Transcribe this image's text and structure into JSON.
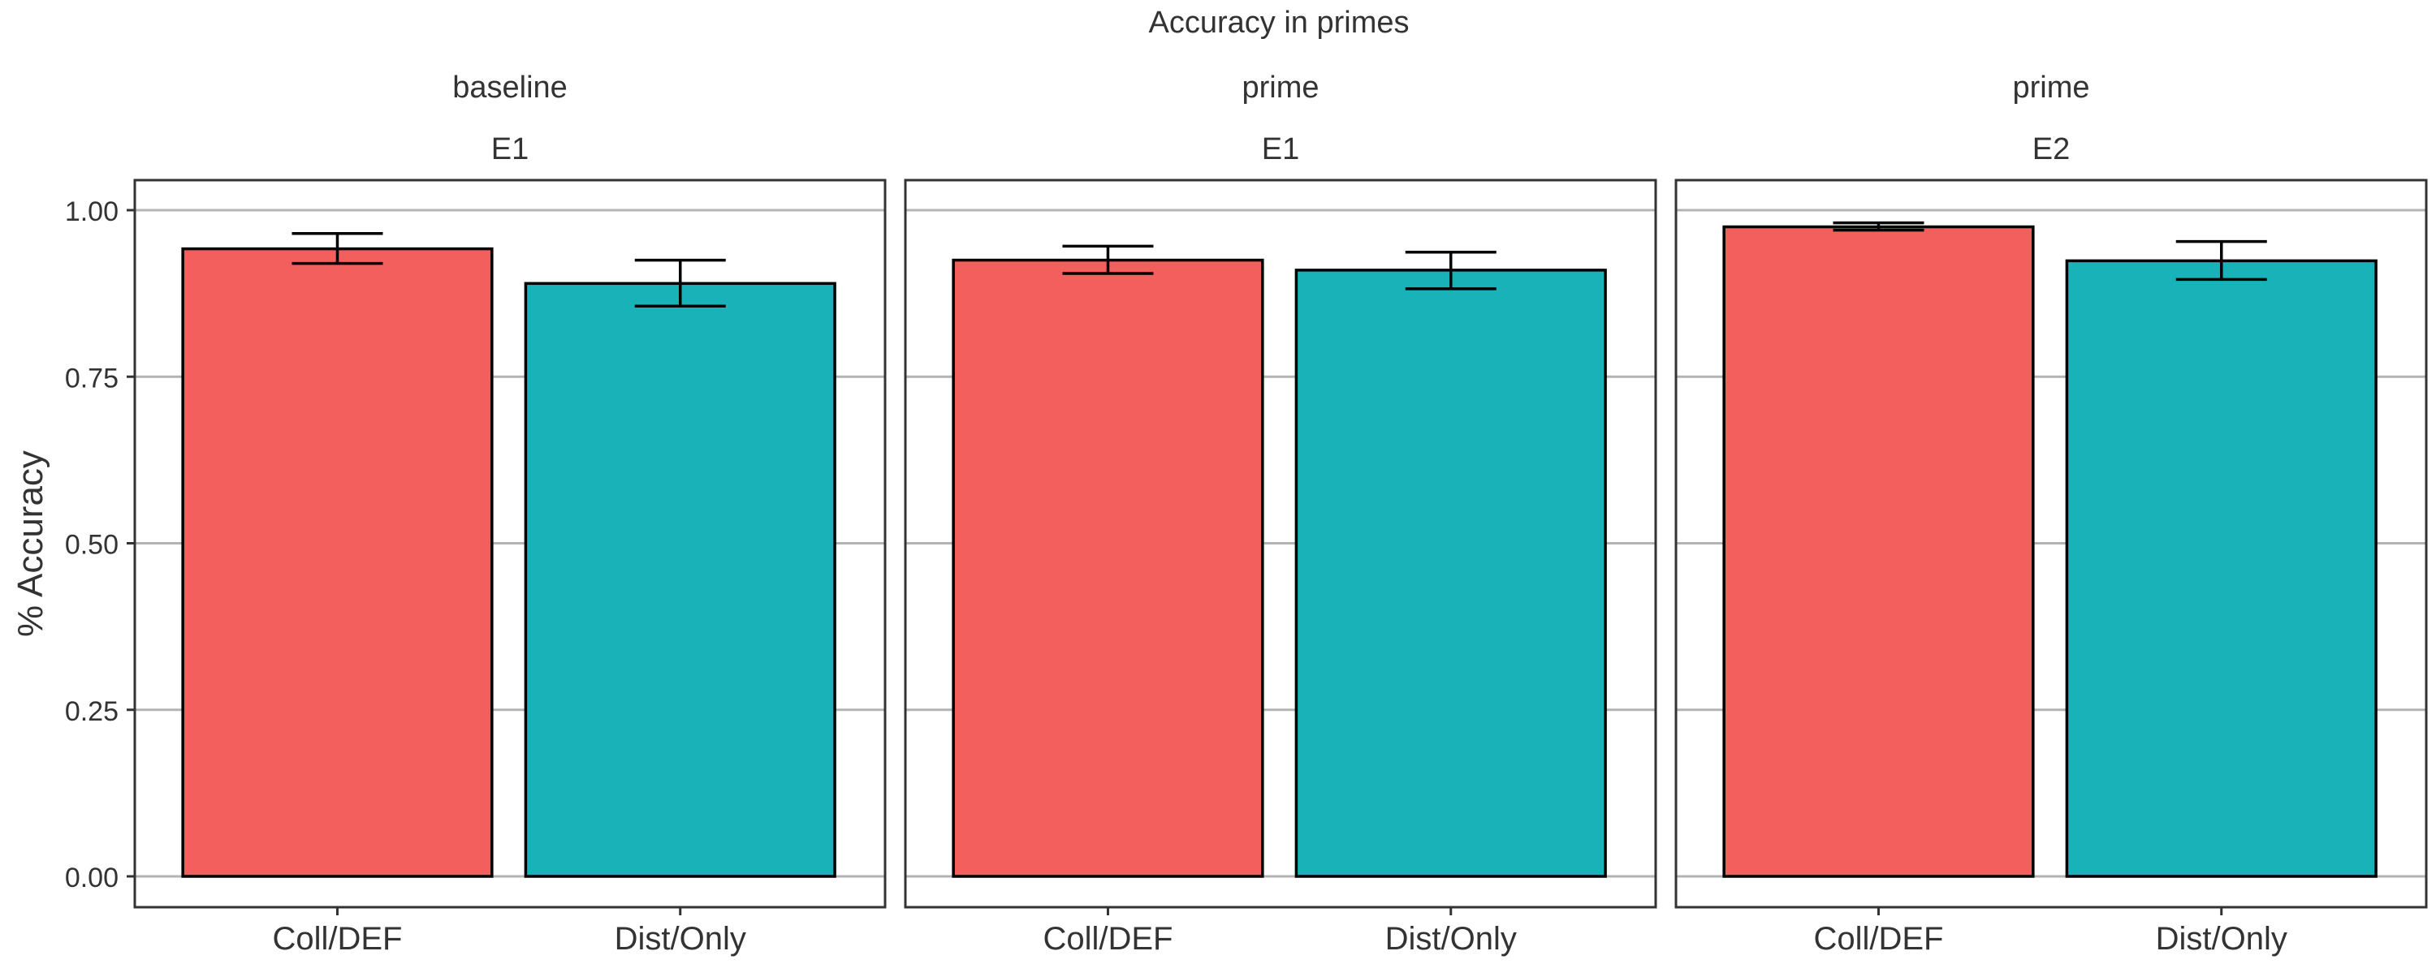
{
  "chart_data": {
    "type": "bar",
    "title": "Accuracy in primes",
    "xlabel": "",
    "ylabel": "% Accuracy",
    "ylim": [
      0,
      1.05
    ],
    "yticks": [
      "0.00",
      "0.25",
      "0.50",
      "0.75",
      "1.00"
    ],
    "ytick_values": [
      0,
      0.25,
      0.5,
      0.75,
      1.0
    ],
    "grid": true,
    "legend": "none",
    "categories": [
      "Coll/DEF",
      "Dist/Only"
    ],
    "colors": [
      "#F25F5C",
      "#19B2B8"
    ],
    "panels": [
      {
        "strip_top": "baseline",
        "strip_bottom": "E1",
        "values": [
          0.942,
          0.89
        ],
        "error_low": [
          0.92,
          0.856
        ],
        "error_high": [
          0.965,
          0.925
        ]
      },
      {
        "strip_top": "prime",
        "strip_bottom": "E1",
        "values": [
          0.925,
          0.91
        ],
        "error_low": [
          0.905,
          0.882
        ],
        "error_high": [
          0.946,
          0.937
        ]
      },
      {
        "strip_top": "prime",
        "strip_bottom": "E2",
        "values": [
          0.975,
          0.924
        ],
        "error_low": [
          0.97,
          0.896
        ],
        "error_high": [
          0.981,
          0.953
        ]
      }
    ]
  }
}
